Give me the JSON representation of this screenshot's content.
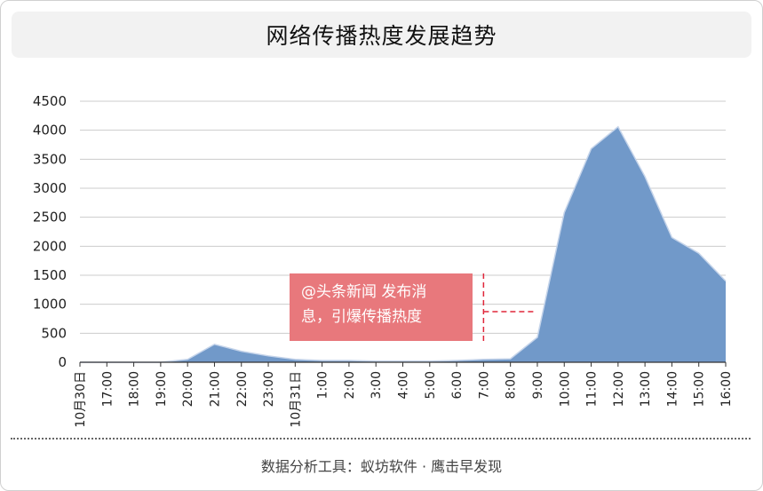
{
  "chart_data": {
    "type": "area",
    "title": "网络传播热度发展趋势",
    "x": [
      "10月30日",
      "17:00",
      "18:00",
      "19:00",
      "20:00",
      "21:00",
      "22:00",
      "23:00",
      "10月31日",
      "1:00",
      "2:00",
      "3:00",
      "4:00",
      "5:00",
      "6:00",
      "7:00",
      "8:00",
      "9:00",
      "10:00",
      "11:00",
      "12:00",
      "13:00",
      "14:00",
      "15:00",
      "16:00"
    ],
    "values": [
      0,
      0,
      0,
      0,
      50,
      310,
      190,
      110,
      50,
      30,
      30,
      20,
      20,
      20,
      30,
      50,
      60,
      430,
      2580,
      3680,
      4060,
      3200,
      2150,
      1880,
      1400
    ],
    "yticks": [
      0,
      500,
      1000,
      1500,
      2000,
      2500,
      3000,
      3500,
      4000,
      4500
    ],
    "ylim": [
      0,
      4500
    ],
    "xlabel": "",
    "ylabel": "",
    "grid": true,
    "legend": "none",
    "fill_color": "#7199c9",
    "line_color": "#c5d4ea",
    "annotation": {
      "lines": [
        "@头条新闻  发布消",
        "息，引爆传播热度"
      ],
      "box_color": "#e8787c",
      "text_color": "#ffffff",
      "marker_color": "#e0263a",
      "marker_at": "7:00"
    }
  },
  "footer": {
    "text": "数据分析工具：蚁坊软件 · 鹰击早发现"
  }
}
